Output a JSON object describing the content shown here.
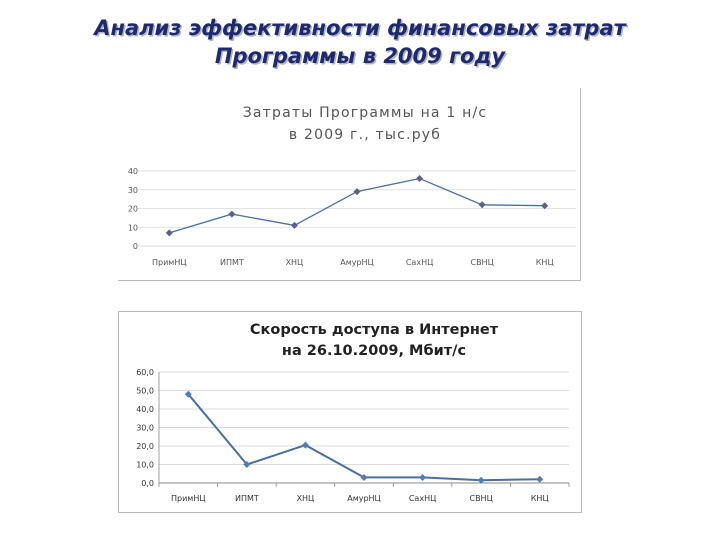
{
  "slide": {
    "title_line1": "Анализ эффективности финансовых затрат",
    "title_line2": "Программы в 2009 году"
  },
  "colors": {
    "line": "#4a6fa5",
    "marker1": "#5a5f8c",
    "marker2": "#4f7fb5",
    "title": "#1f2a6e"
  },
  "chart_data": [
    {
      "type": "line",
      "title": "Затраты Программы на 1 н/с в 2009 г., тыс.руб",
      "title_lines": [
        "Затраты Программы на 1 н/с",
        "в 2009 г., тыс.руб"
      ],
      "categories": [
        "ПримНЦ",
        "ИПМТ",
        "ХНЦ",
        "АмурНЦ",
        "СахНЦ",
        "СВНЦ",
        "КНЦ"
      ],
      "series": [
        {
          "values": [
            7,
            17,
            11,
            29,
            36,
            22,
            21.5
          ]
        }
      ],
      "ylim": [
        0,
        40
      ],
      "yticks": [
        "0",
        "10",
        "20",
        "30",
        "40"
      ],
      "grid": true,
      "legend": "none"
    },
    {
      "type": "line",
      "title": "Скорость доступа в Интернет на 26.10.2009, Мбит/с",
      "title_lines": [
        "Скорость доступа в Интернет",
        "на 26.10.2009, Мбит/с"
      ],
      "categories": [
        "ПримНЦ",
        "ИПМТ",
        "ХНЦ",
        "АмурНЦ",
        "СахНЦ",
        "СВНЦ",
        "КНЦ"
      ],
      "series": [
        {
          "values": [
            48,
            10,
            20.5,
            3,
            3,
            1.5,
            2
          ]
        }
      ],
      "ylim": [
        0,
        60
      ],
      "yticks": [
        "0,0",
        "10,0",
        "20,0",
        "30,0",
        "40,0",
        "50,0",
        "60,0"
      ],
      "grid": true,
      "legend": "none"
    }
  ]
}
